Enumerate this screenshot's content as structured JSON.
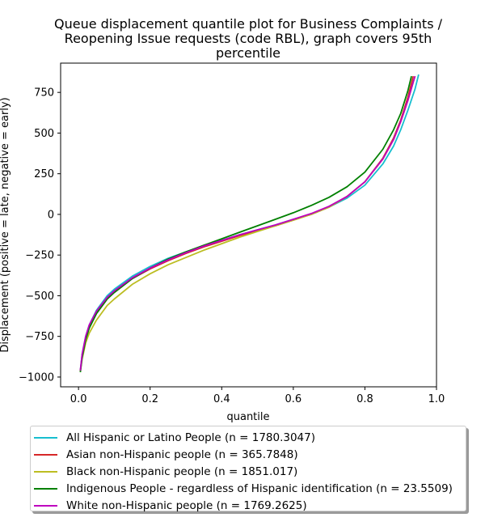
{
  "chart_data": {
    "type": "line",
    "title_lines": [
      "Queue displacement quantile plot for Business Complaints /",
      "Reopening Issue  requests (code RBL), graph covers 95th",
      "percentile"
    ],
    "xlabel": "quantile",
    "ylabel": "Displacement (positive = late, negative = early)",
    "xlim": [
      -0.05,
      1.0
    ],
    "ylim": [
      -1060,
      930
    ],
    "x_ticks": [
      0.0,
      0.2,
      0.4,
      0.6,
      0.8,
      1.0
    ],
    "x_tick_labels": [
      "0.0",
      "0.2",
      "0.4",
      "0.6",
      "0.8",
      "1.0"
    ],
    "y_ticks": [
      -1000,
      -750,
      -500,
      -250,
      0,
      250,
      500,
      750
    ],
    "y_tick_labels": [
      "−1000",
      "−750",
      "−500",
      "−250",
      "0",
      "250",
      "500",
      "750"
    ],
    "grid": false,
    "legend_position": "below",
    "series": [
      {
        "name": "All Hispanic or Latino People (n = 1780.3047)",
        "color": "#17becf",
        "x": [
          0.005,
          0.01,
          0.02,
          0.03,
          0.05,
          0.08,
          0.1,
          0.15,
          0.2,
          0.25,
          0.3,
          0.35,
          0.4,
          0.45,
          0.5,
          0.55,
          0.6,
          0.65,
          0.7,
          0.75,
          0.8,
          0.85,
          0.88,
          0.9,
          0.92,
          0.94,
          0.95
        ],
        "y": [
          -960,
          -860,
          -750,
          -680,
          -590,
          -500,
          -460,
          -380,
          -320,
          -270,
          -230,
          -195,
          -160,
          -125,
          -95,
          -65,
          -30,
          0,
          45,
          100,
          180,
          310,
          420,
          520,
          640,
          770,
          860
        ]
      },
      {
        "name": "Asian non-Hispanic people (n = 365.7848)",
        "color": "#d62728",
        "x": [
          0.005,
          0.01,
          0.02,
          0.03,
          0.05,
          0.08,
          0.1,
          0.15,
          0.2,
          0.25,
          0.3,
          0.35,
          0.4,
          0.45,
          0.5,
          0.55,
          0.6,
          0.65,
          0.7,
          0.75,
          0.8,
          0.85,
          0.88,
          0.9,
          0.92,
          0.935
        ],
        "y": [
          -965,
          -870,
          -760,
          -695,
          -610,
          -520,
          -480,
          -395,
          -335,
          -285,
          -240,
          -200,
          -165,
          -130,
          -100,
          -70,
          -35,
          0,
          45,
          110,
          200,
          345,
          470,
          580,
          720,
          850
        ]
      },
      {
        "name": "Black non-Hispanic people (n = 1851.017)",
        "color": "#bcbd22",
        "x": [
          0.005,
          0.01,
          0.02,
          0.03,
          0.05,
          0.08,
          0.1,
          0.15,
          0.2,
          0.25,
          0.3,
          0.35,
          0.4,
          0.45,
          0.5,
          0.55,
          0.6,
          0.65,
          0.7,
          0.75,
          0.8,
          0.85,
          0.88,
          0.9,
          0.92,
          0.94
        ],
        "y": [
          -965,
          -890,
          -790,
          -730,
          -650,
          -560,
          -520,
          -430,
          -365,
          -310,
          -265,
          -220,
          -180,
          -140,
          -105,
          -70,
          -35,
          0,
          45,
          110,
          200,
          340,
          460,
          570,
          700,
          850
        ]
      },
      {
        "name": "Indigenous People - regardless of Hispanic identification (n = 23.5509)",
        "color": "#008000",
        "x": [
          0.005,
          0.01,
          0.02,
          0.03,
          0.05,
          0.08,
          0.1,
          0.15,
          0.2,
          0.25,
          0.3,
          0.35,
          0.4,
          0.45,
          0.5,
          0.55,
          0.6,
          0.65,
          0.7,
          0.75,
          0.8,
          0.85,
          0.88,
          0.9,
          0.92,
          0.93
        ],
        "y": [
          -970,
          -880,
          -770,
          -700,
          -610,
          -520,
          -480,
          -395,
          -330,
          -275,
          -230,
          -190,
          -150,
          -110,
          -70,
          -30,
          10,
          55,
          105,
          170,
          260,
          400,
          520,
          620,
          760,
          850
        ]
      },
      {
        "name": "White non-Hispanic people (n = 1769.2625)",
        "color": "#bf00bf",
        "x": [
          0.005,
          0.01,
          0.02,
          0.03,
          0.05,
          0.08,
          0.1,
          0.15,
          0.2,
          0.25,
          0.3,
          0.35,
          0.4,
          0.45,
          0.5,
          0.55,
          0.6,
          0.65,
          0.7,
          0.75,
          0.8,
          0.85,
          0.88,
          0.9,
          0.92,
          0.94
        ],
        "y": [
          -960,
          -860,
          -750,
          -680,
          -595,
          -510,
          -470,
          -390,
          -330,
          -280,
          -235,
          -195,
          -160,
          -125,
          -95,
          -65,
          -30,
          5,
          50,
          110,
          200,
          340,
          460,
          570,
          700,
          850
        ]
      }
    ]
  }
}
